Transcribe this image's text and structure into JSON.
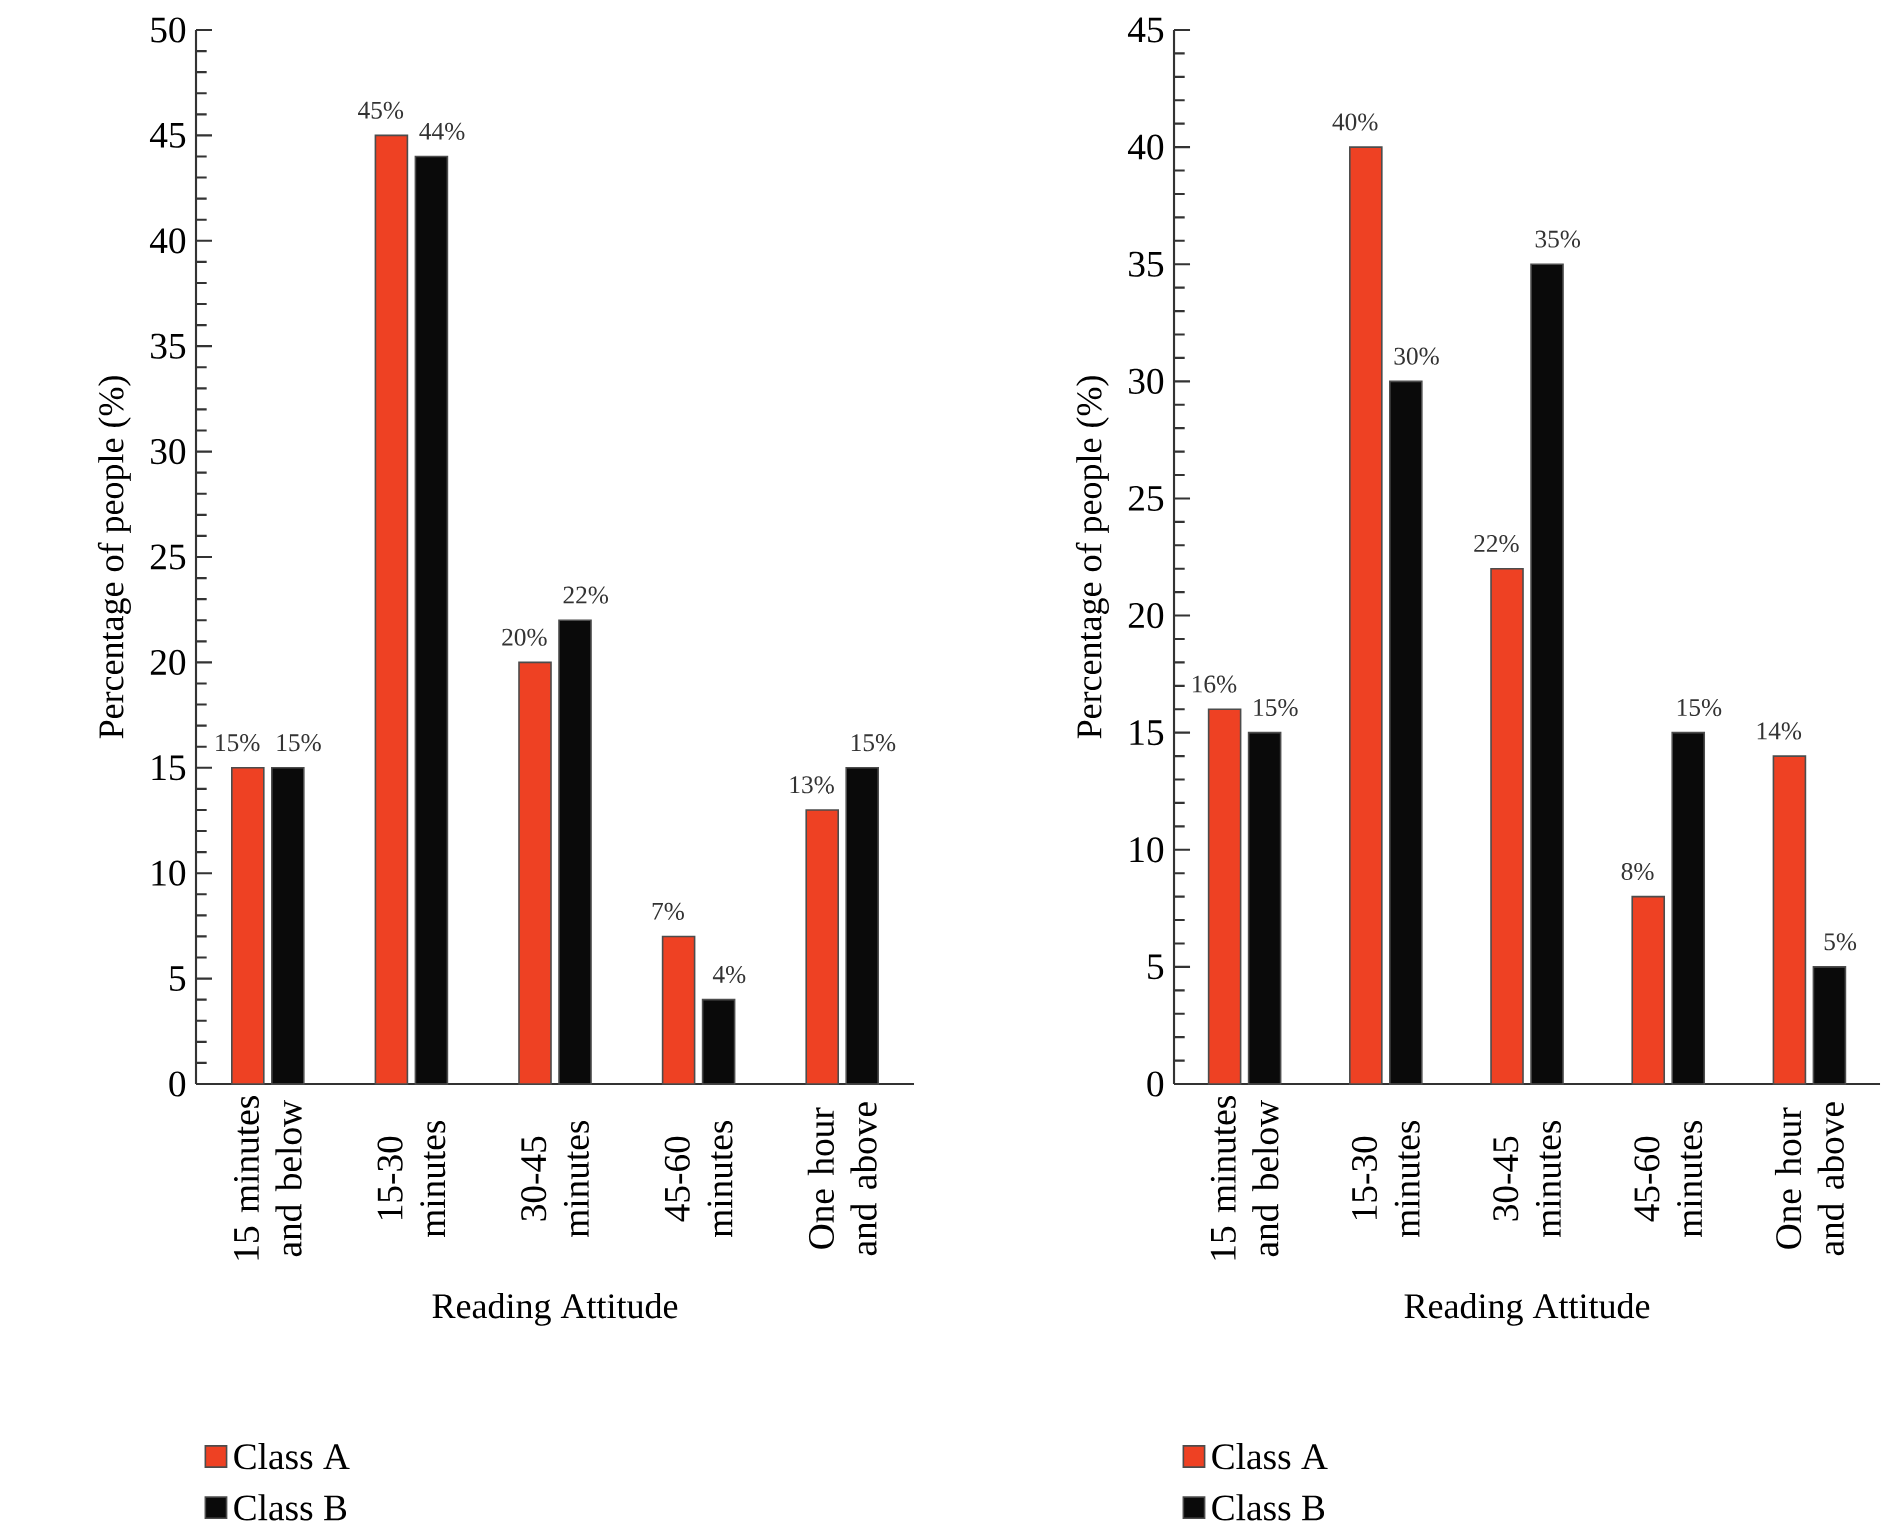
{
  "chart_data": [
    {
      "type": "bar",
      "categories": [
        "15 minutes and below",
        "15-30 minutes",
        "30-45 minutes",
        "45-60 minutes",
        "One hour and above"
      ],
      "xlabel": "Reading Attitude",
      "ylabel": "Percentage of people (%)",
      "ylim": [
        0,
        50
      ],
      "yticks": [
        0,
        5,
        10,
        15,
        20,
        25,
        30,
        35,
        40,
        45,
        50
      ],
      "legend": "bottom",
      "series": [
        {
          "name": "Class A",
          "color": "#ee4123",
          "values": [
            15,
            45,
            20,
            7,
            13
          ],
          "value_labels": [
            "15%",
            "45%",
            "20%",
            "7%",
            "13%"
          ]
        },
        {
          "name": "Class B",
          "color": "#0a0a0a",
          "values": [
            15,
            44,
            22,
            4,
            15
          ],
          "value_labels": [
            "15%",
            "44%",
            "22%",
            "4%",
            "15%"
          ]
        }
      ]
    },
    {
      "type": "bar",
      "categories": [
        "15 minutes and below",
        "15-30 minutes",
        "30-45 minutes",
        "45-60 minutes",
        "One hour and above"
      ],
      "xlabel": "Reading Attitude",
      "ylabel": "Percentage of people (%)",
      "ylim": [
        0,
        45
      ],
      "yticks": [
        0,
        5,
        10,
        15,
        20,
        25,
        30,
        35,
        40,
        45
      ],
      "legend": "bottom",
      "series": [
        {
          "name": "Class A",
          "color": "#ee4123",
          "values": [
            16,
            40,
            22,
            8,
            14
          ],
          "value_labels": [
            "16%",
            "40%",
            "22%",
            "8%",
            "14%"
          ]
        },
        {
          "name": "Class B",
          "color": "#0a0a0a",
          "values": [
            15,
            30,
            35,
            15,
            5
          ],
          "value_labels": [
            "15%",
            "30%",
            "35%",
            "15%",
            "5%"
          ]
        }
      ]
    }
  ]
}
